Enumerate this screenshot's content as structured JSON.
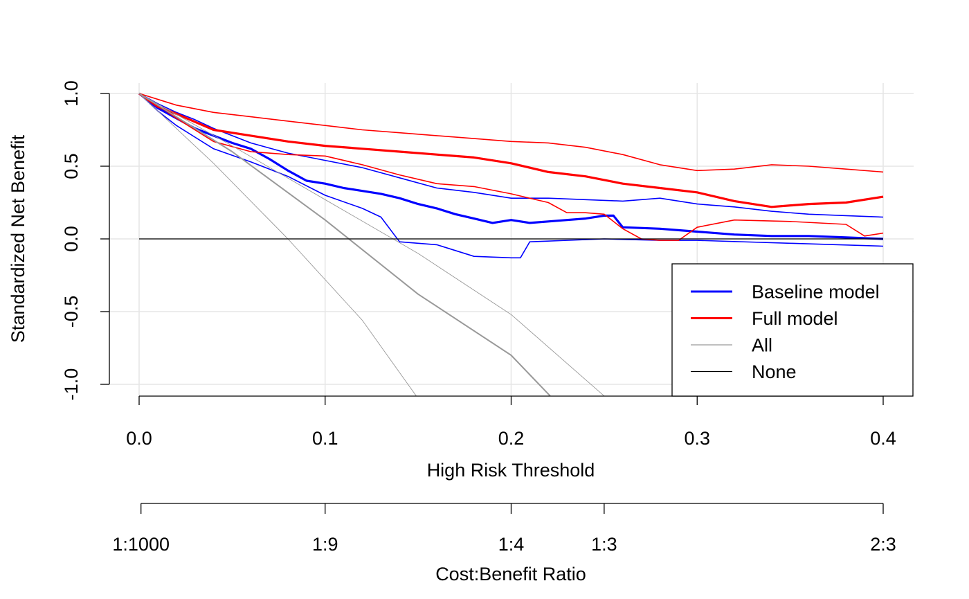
{
  "chart_data": {
    "type": "line",
    "title": "",
    "xlabel": "High Risk Threshold",
    "ylabel": "Standardized Net Benefit",
    "xlim": [
      0,
      0.4
    ],
    "ylim": [
      -1,
      1
    ],
    "x_ticks": [
      "0.0",
      "0.1",
      "0.2",
      "0.3",
      "0.4"
    ],
    "y_ticks": [
      "-1.0",
      "-0.5",
      "0.0",
      "0.5",
      "1.0"
    ],
    "grid": true,
    "legend_position": "bottom-right",
    "secondary_axis": {
      "label": "Cost:Benefit Ratio",
      "ticks": [
        {
          "x": 0.001,
          "label": "1:1000"
        },
        {
          "x": 0.1,
          "label": "1:9"
        },
        {
          "x": 0.2,
          "label": "1:4"
        },
        {
          "x": 0.25,
          "label": "1:3"
        },
        {
          "x": 0.4,
          "label": "2:3"
        }
      ]
    },
    "series": [
      {
        "name": "Baseline model",
        "color": "#0000ff",
        "role": "estimate",
        "x": [
          0,
          0.01,
          0.02,
          0.03,
          0.04,
          0.05,
          0.06,
          0.07,
          0.08,
          0.09,
          0.1,
          0.11,
          0.12,
          0.13,
          0.14,
          0.15,
          0.16,
          0.17,
          0.18,
          0.19,
          0.2,
          0.21,
          0.22,
          0.23,
          0.24,
          0.25,
          0.255,
          0.26,
          0.28,
          0.3,
          0.32,
          0.34,
          0.36,
          0.38,
          0.4
        ],
        "y": [
          1.0,
          0.9,
          0.83,
          0.76,
          0.71,
          0.66,
          0.62,
          0.55,
          0.47,
          0.4,
          0.38,
          0.35,
          0.33,
          0.31,
          0.28,
          0.24,
          0.21,
          0.17,
          0.14,
          0.11,
          0.13,
          0.11,
          0.12,
          0.13,
          0.14,
          0.16,
          0.16,
          0.08,
          0.07,
          0.05,
          0.03,
          0.02,
          0.02,
          0.01,
          0.0
        ]
      },
      {
        "name": "Baseline model upper",
        "color": "#0000ff",
        "role": "ci",
        "x": [
          0,
          0.01,
          0.02,
          0.03,
          0.04,
          0.05,
          0.06,
          0.08,
          0.1,
          0.12,
          0.14,
          0.16,
          0.18,
          0.2,
          0.22,
          0.24,
          0.26,
          0.28,
          0.3,
          0.32,
          0.34,
          0.36,
          0.38,
          0.4
        ],
        "y": [
          1.0,
          0.93,
          0.87,
          0.82,
          0.76,
          0.71,
          0.66,
          0.59,
          0.54,
          0.49,
          0.42,
          0.35,
          0.32,
          0.28,
          0.28,
          0.27,
          0.26,
          0.28,
          0.24,
          0.22,
          0.19,
          0.17,
          0.16,
          0.15
        ]
      },
      {
        "name": "Baseline model lower",
        "color": "#0000ff",
        "role": "ci",
        "x": [
          0,
          0.01,
          0.02,
          0.03,
          0.04,
          0.06,
          0.08,
          0.1,
          0.12,
          0.13,
          0.14,
          0.16,
          0.18,
          0.2,
          0.205,
          0.21,
          0.25,
          0.28,
          0.3,
          0.35,
          0.4
        ],
        "y": [
          1.0,
          0.88,
          0.78,
          0.7,
          0.62,
          0.53,
          0.43,
          0.3,
          0.21,
          0.15,
          -0.02,
          -0.04,
          -0.12,
          -0.13,
          -0.13,
          -0.02,
          0.0,
          -0.01,
          -0.01,
          -0.03,
          -0.05
        ]
      },
      {
        "name": "Full model",
        "color": "#ff0000",
        "role": "estimate",
        "x": [
          0,
          0.01,
          0.02,
          0.04,
          0.06,
          0.08,
          0.1,
          0.12,
          0.14,
          0.16,
          0.18,
          0.2,
          0.22,
          0.24,
          0.26,
          0.28,
          0.3,
          0.32,
          0.34,
          0.36,
          0.38,
          0.4
        ],
        "y": [
          1.0,
          0.91,
          0.86,
          0.75,
          0.71,
          0.67,
          0.64,
          0.62,
          0.6,
          0.58,
          0.56,
          0.52,
          0.46,
          0.43,
          0.38,
          0.35,
          0.32,
          0.26,
          0.22,
          0.24,
          0.25,
          0.29
        ]
      },
      {
        "name": "Full model upper",
        "color": "#ff0000",
        "role": "ci",
        "x": [
          0,
          0.02,
          0.04,
          0.06,
          0.08,
          0.1,
          0.12,
          0.14,
          0.16,
          0.18,
          0.2,
          0.22,
          0.24,
          0.26,
          0.28,
          0.3,
          0.32,
          0.34,
          0.36,
          0.38,
          0.4
        ],
        "y": [
          1.0,
          0.92,
          0.87,
          0.84,
          0.81,
          0.78,
          0.75,
          0.73,
          0.71,
          0.69,
          0.67,
          0.66,
          0.63,
          0.58,
          0.51,
          0.47,
          0.48,
          0.51,
          0.5,
          0.48,
          0.46
        ]
      },
      {
        "name": "Full model lower",
        "color": "#ff0000",
        "role": "ci",
        "x": [
          0,
          0.01,
          0.02,
          0.04,
          0.06,
          0.08,
          0.1,
          0.12,
          0.14,
          0.16,
          0.18,
          0.2,
          0.22,
          0.23,
          0.24,
          0.25,
          0.26,
          0.27,
          0.28,
          0.29,
          0.3,
          0.32,
          0.35,
          0.38,
          0.39,
          0.4
        ],
        "y": [
          1.0,
          0.92,
          0.83,
          0.67,
          0.6,
          0.58,
          0.57,
          0.51,
          0.44,
          0.38,
          0.36,
          0.31,
          0.25,
          0.18,
          0.18,
          0.17,
          0.07,
          0.0,
          -0.01,
          -0.01,
          0.08,
          0.13,
          0.12,
          0.1,
          0.02,
          0.04
        ]
      },
      {
        "name": "All",
        "color": "#999999",
        "role": "estimate",
        "stroke_width": 2,
        "x": [
          0,
          0.05,
          0.1,
          0.15,
          0.2,
          0.221
        ],
        "y": [
          1.0,
          0.6,
          0.13,
          -0.38,
          -0.8,
          -1.08
        ]
      },
      {
        "name": "All upper",
        "color": "#999999",
        "role": "ci",
        "x": [
          0,
          0.05,
          0.1,
          0.15,
          0.2,
          0.25
        ],
        "y": [
          1.0,
          0.64,
          0.27,
          -0.1,
          -0.52,
          -1.08
        ]
      },
      {
        "name": "All lower",
        "color": "#999999",
        "role": "ci",
        "x": [
          0,
          0.04,
          0.08,
          0.12,
          0.149
        ],
        "y": [
          1.0,
          0.52,
          0.0,
          -0.56,
          -1.08
        ]
      },
      {
        "name": "None",
        "color": "#000000",
        "role": "estimate",
        "stroke_width": 1.3,
        "x": [
          0,
          0.4
        ],
        "y": [
          0,
          0
        ]
      }
    ],
    "legend": [
      {
        "name": "Baseline model",
        "color": "#0000ff",
        "stroke_width": 3
      },
      {
        "name": "Full model",
        "color": "#ff0000",
        "stroke_width": 3
      },
      {
        "name": "All",
        "color": "#999999",
        "stroke_width": 1.3
      },
      {
        "name": "None",
        "color": "#000000",
        "stroke_width": 1.3
      }
    ]
  }
}
